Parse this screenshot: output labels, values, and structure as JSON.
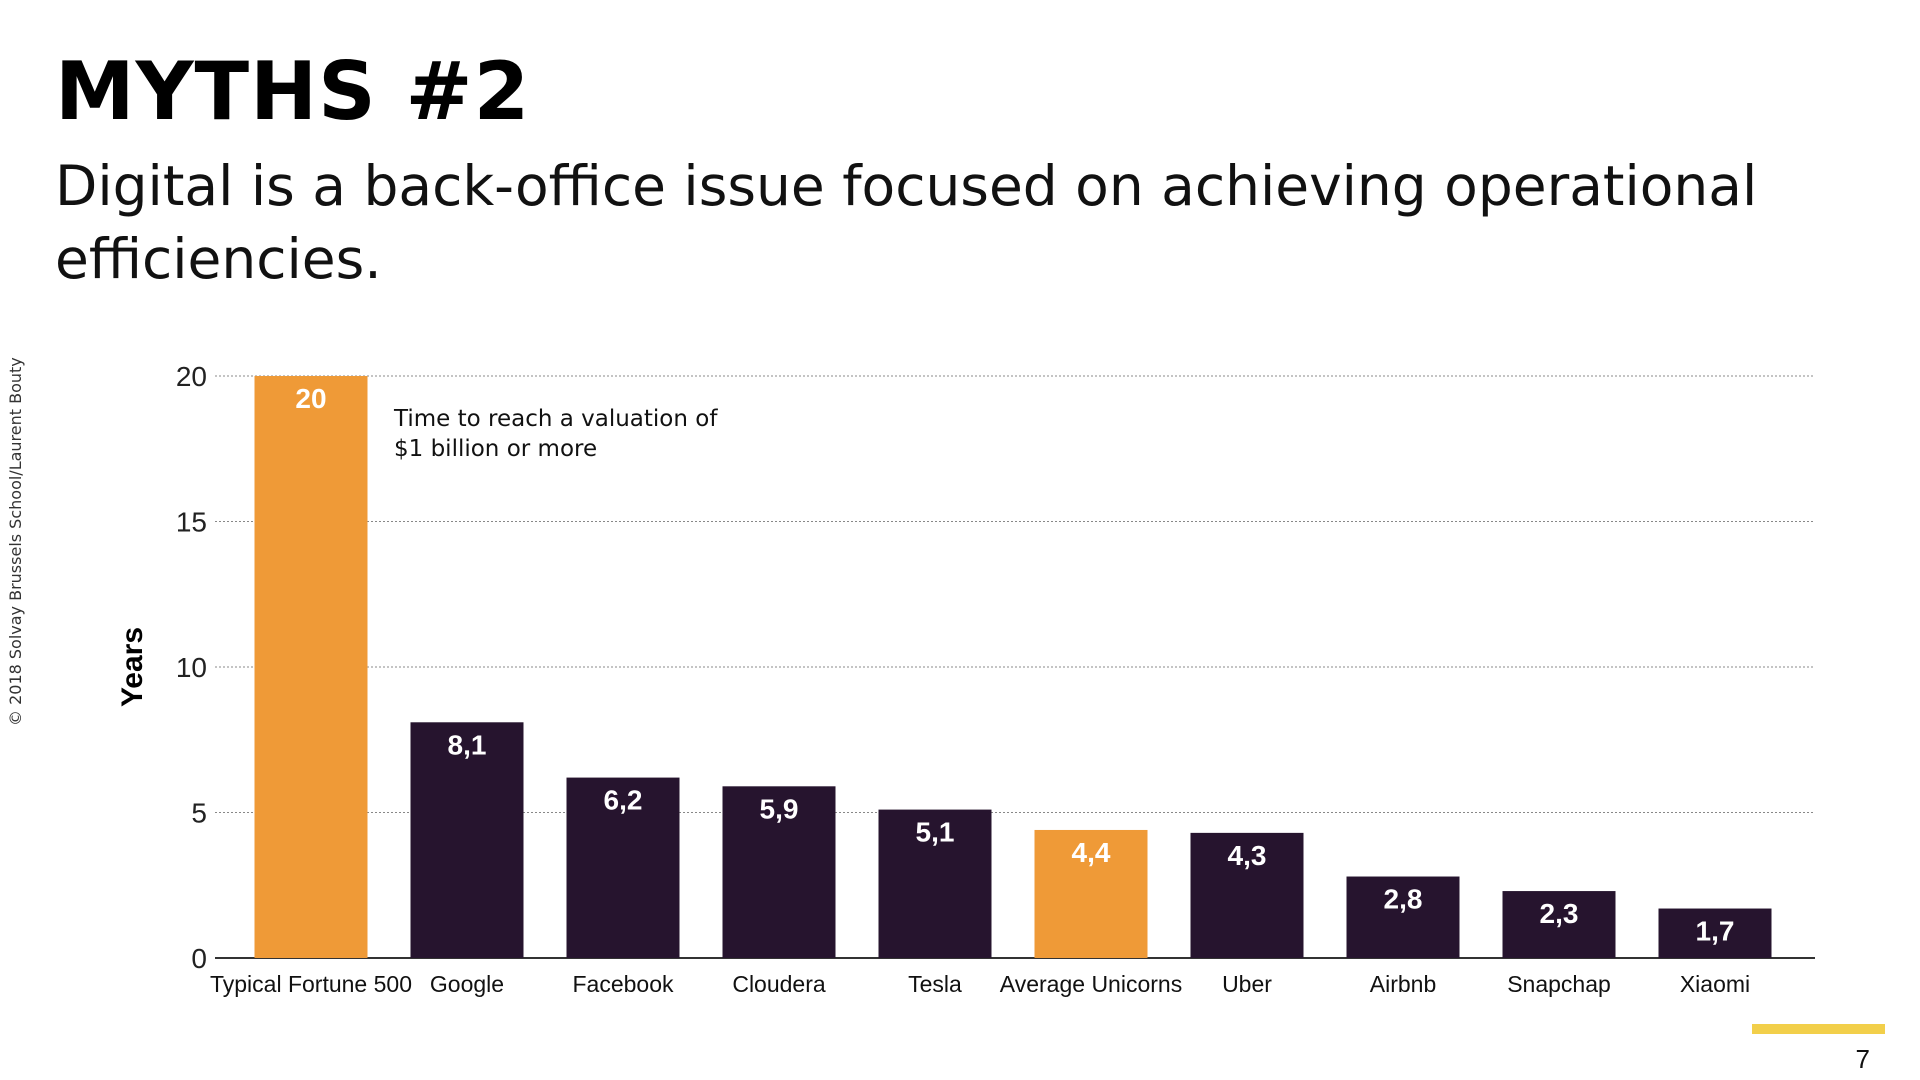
{
  "slide": {
    "title": "MYTHS #2",
    "subtitle": "Digital is a back-office issue focused on achieving operational efficiencies.",
    "copyright": "© 2018 Solvay Brussels School/Laurent Bouty",
    "page_number": "7"
  },
  "colors": {
    "highlight": "#ef9a37",
    "primary": "#26142e",
    "gridline": "#888888",
    "page_accent": "#f2cf4a"
  },
  "chart_data": {
    "type": "bar",
    "title": "",
    "annotation": [
      "Time to reach a valuation of",
      "$1 billion or more"
    ],
    "xlabel": "",
    "ylabel": "Years",
    "ylim": [
      0,
      20
    ],
    "yticks": [
      0,
      5,
      10,
      15,
      20
    ],
    "grid": true,
    "categories": [
      "Typical Fortune 500",
      "Google",
      "Facebook",
      "Cloudera",
      "Tesla",
      "Average Unicorns",
      "Uber",
      "Airbnb",
      "Snapchap",
      "Xiaomi"
    ],
    "values": [
      20,
      8.1,
      6.2,
      5.9,
      5.1,
      4.4,
      4.3,
      2.8,
      2.3,
      1.7
    ],
    "data_labels": [
      "20",
      "8,1",
      "6,2",
      "5,9",
      "5,1",
      "4,4",
      "4,3",
      "2,8",
      "2,3",
      "1,7"
    ],
    "highlighted": [
      "Typical Fortune 500",
      "Average Unicorns"
    ]
  }
}
